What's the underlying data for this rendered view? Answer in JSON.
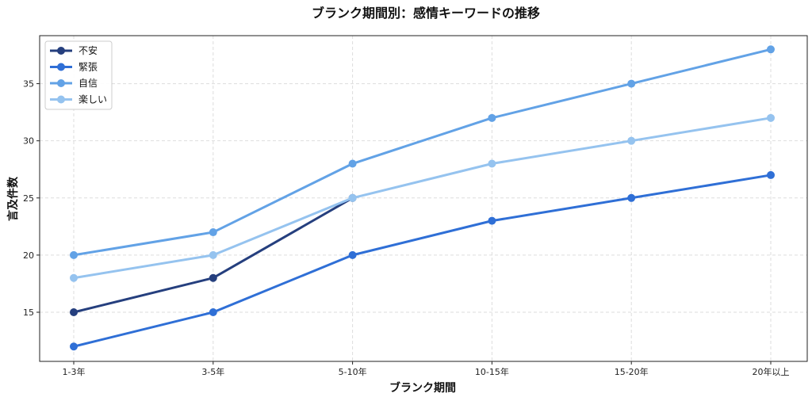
{
  "chart_data": {
    "type": "line",
    "title": "ブランク期間別：感情キーワードの推移",
    "xlabel": "ブランク期間",
    "ylabel": "言及件数",
    "categories": [
      "1-3年",
      "3-5年",
      "5-10年",
      "10-15年",
      "15-20年",
      "20年以上"
    ],
    "ylim": [
      10.7,
      39.2
    ],
    "yticks": [
      15,
      20,
      25,
      30,
      35
    ],
    "grid": true,
    "legend_position": "top-left",
    "series": [
      {
        "name": "不安",
        "color": "#253f7e",
        "values": [
          15,
          18,
          25,
          null,
          null,
          null
        ]
      },
      {
        "name": "緊張",
        "color": "#2f6fd6",
        "values": [
          12,
          15,
          20,
          23,
          25,
          27
        ]
      },
      {
        "name": "自信",
        "color": "#62a2e6",
        "values": [
          20,
          22,
          28,
          32,
          35,
          38
        ]
      },
      {
        "name": "楽しい",
        "color": "#95c3ef",
        "values": [
          18,
          20,
          25,
          28,
          30,
          32
        ]
      }
    ]
  }
}
